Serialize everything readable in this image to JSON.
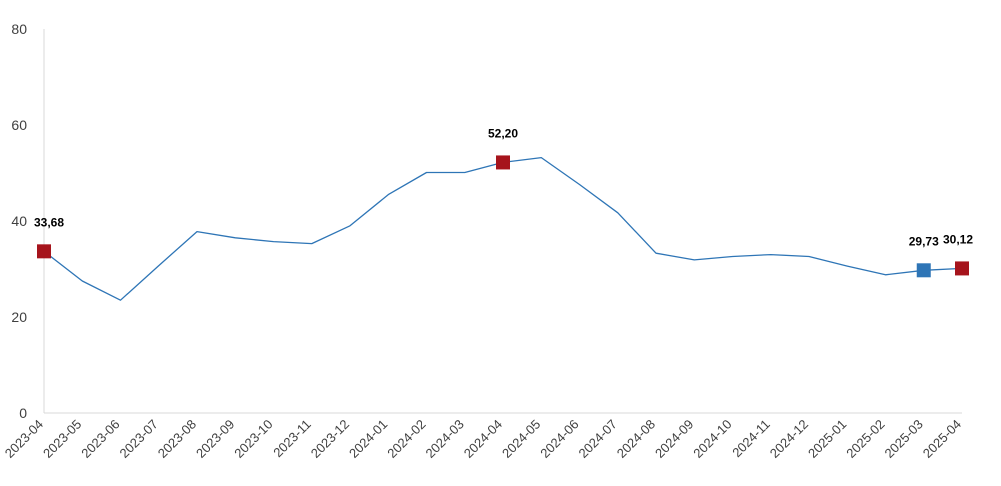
{
  "chart_data": {
    "type": "line",
    "title": "",
    "xlabel": "",
    "ylabel": "",
    "ylim": [
      0,
      80
    ],
    "yticks": [
      0,
      20,
      40,
      60,
      80
    ],
    "grid": false,
    "categories": [
      "2023-04",
      "2023-05",
      "2023-06",
      "2023-07",
      "2023-08",
      "2023-09",
      "2023-10",
      "2023-11",
      "2023-12",
      "2024-01",
      "2024-02",
      "2024-03",
      "2024-04",
      "2024-05",
      "2024-06",
      "2024-07",
      "2024-08",
      "2024-09",
      "2024-10",
      "2024-11",
      "2024-12",
      "2025-01",
      "2025-02",
      "2025-03",
      "2025-04"
    ],
    "series": [
      {
        "values": [
          33.68,
          27.5,
          23.5,
          30.7,
          37.8,
          36.5,
          35.7,
          35.3,
          39.0,
          45.5,
          50.1,
          50.1,
          52.2,
          53.2,
          47.6,
          41.7,
          33.3,
          31.9,
          32.6,
          33.0,
          32.6,
          30.6,
          28.8,
          29.73,
          30.12
        ],
        "color": "#2E75B6"
      }
    ],
    "highlights": [
      {
        "index": 0,
        "label": "33,68",
        "color": "#A6141C"
      },
      {
        "index": 12,
        "label": "52,20",
        "color": "#A6141C"
      },
      {
        "index": 23,
        "label": "29,73",
        "color": "#2E75B6"
      },
      {
        "index": 24,
        "label": "30,12",
        "color": "#A6141C"
      }
    ]
  }
}
